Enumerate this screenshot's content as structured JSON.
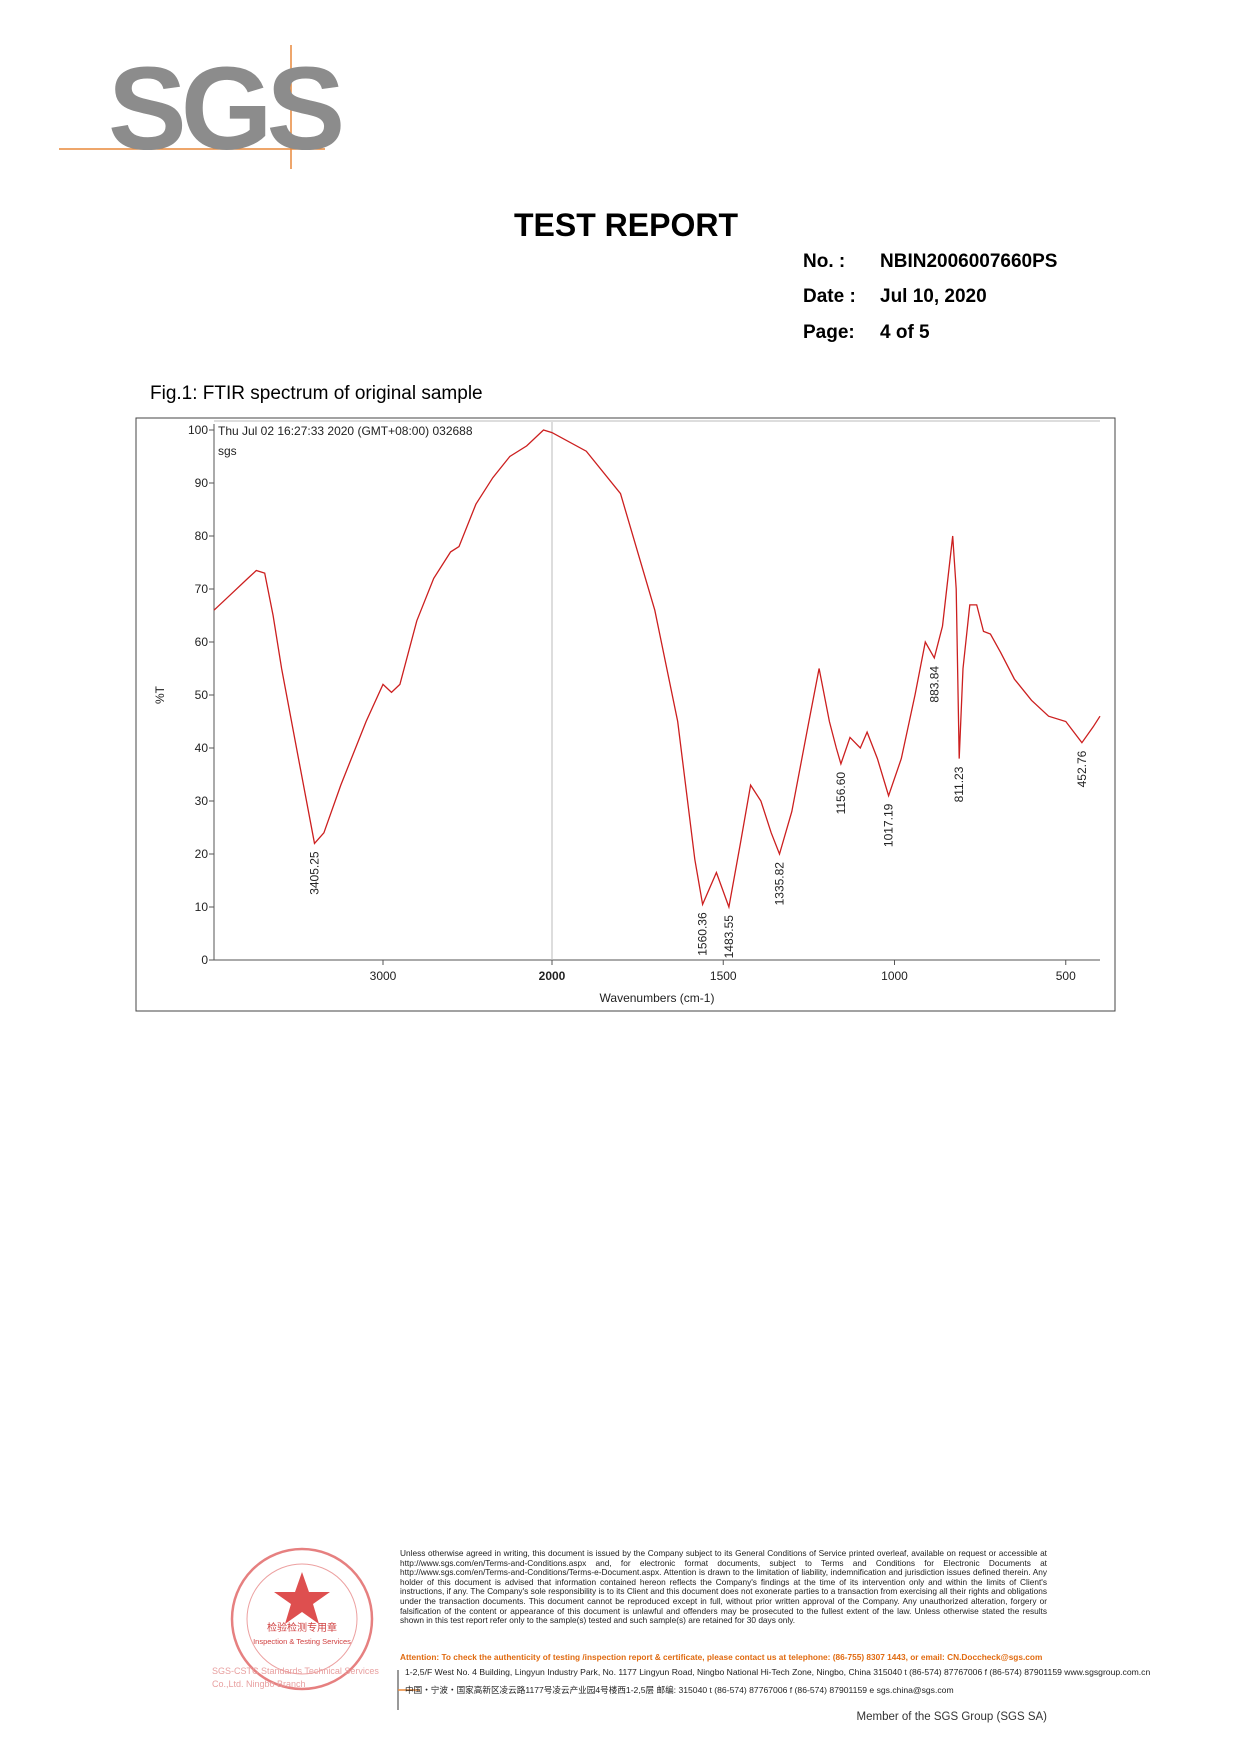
{
  "header": {
    "logo": "SGS",
    "title": "TEST REPORT",
    "fields": [
      {
        "label": "No.  :",
        "value": "NBIN2006007660PS"
      },
      {
        "label": "Date :",
        "value": "Jul 10, 2020"
      },
      {
        "label": "Page:",
        "value": "4 of  5"
      }
    ]
  },
  "figure": {
    "caption": "Fig.1: FTIR spectrum of original sample"
  },
  "chart_data": {
    "type": "line",
    "annotations": [
      "Thu Jul 02 16:27:33 2020 (GMT+08:00) 032688",
      "sgs"
    ],
    "x_label": "Wavenumbers (cm-1)",
    "y_label": "%T",
    "x": [
      4000,
      3900,
      3800,
      3750,
      3700,
      3650,
      3600,
      3500,
      3405.25,
      3350,
      3250,
      3100,
      3000,
      2950,
      2900,
      2800,
      2700,
      2600,
      2550,
      2450,
      2350,
      2250,
      2150,
      2050,
      2000,
      1900,
      1800,
      1700,
      1633,
      1583,
      1560.36,
      1520,
      1483.55,
      1450,
      1420,
      1390,
      1360,
      1335.82,
      1300,
      1250,
      1220,
      1190,
      1170,
      1156.6,
      1130,
      1100,
      1080,
      1050,
      1017.19,
      980,
      940,
      910,
      883.84,
      860,
      830,
      820,
      811.23,
      800,
      780,
      760,
      740,
      720,
      690,
      650,
      600,
      550,
      500,
      452.76,
      420,
      400
    ],
    "series": [
      {
        "color": "#cc1f1f",
        "values": [
          66,
          69,
          72,
          73.5,
          73,
          65,
          55,
          38,
          22,
          24,
          33,
          45,
          52,
          50.5,
          52,
          64,
          72,
          77,
          78,
          86,
          91,
          95,
          97,
          100,
          99.5,
          96,
          88,
          66,
          45,
          19,
          10.5,
          16.5,
          10,
          22,
          33,
          30,
          24,
          20,
          28,
          45,
          55,
          45,
          40,
          37,
          42,
          40,
          43,
          38,
          31,
          38,
          50,
          60,
          57,
          63,
          80,
          70,
          38,
          55,
          67,
          67,
          62,
          61.5,
          58,
          53,
          49,
          46,
          45,
          41,
          44,
          46
        ]
      }
    ],
    "xlim": [
      4000,
      400
    ],
    "x_break": 2000,
    "xticks": [
      3000,
      2000,
      1500,
      1000,
      500
    ],
    "ylim": [
      0,
      100
    ],
    "yticks": [
      0,
      10,
      20,
      30,
      40,
      50,
      60,
      70,
      80,
      90,
      100
    ],
    "peaks": [
      3405.25,
      1560.36,
      1483.55,
      1335.82,
      {
        "value": 1156.6,
        "label": "1156.60"
      },
      1017.19,
      883.84,
      811.23,
      452.76
    ]
  },
  "footer": {
    "legal": "Unless otherwise agreed in writing, this document is issued by the Company subject to its General Conditions of Service printed overleaf, available on request or accessible at http://www.sgs.com/en/Terms-and-Conditions.aspx and, for electronic format documents, subject to Terms and Conditions for Electronic Documents at http://www.sgs.com/en/Terms-and-Conditions/Terms-e-Document.aspx. Attention is drawn to the limitation of liability, indemnification and jurisdiction issues defined therein. Any holder of this document is advised that information contained hereon reflects the Company's findings at the time of its intervention only and within the limits of Client's instructions, if any. The Company's sole responsibility is to its Client and this document does not exonerate parties to a transaction from exercising all their rights and obligations under the transaction documents. This document cannot be reproduced except in full, without prior written approval of the Company. Any unauthorized alteration, forgery or falsification of the content or appearance of this document is unlawful and offenders may be prosecuted to the fullest extent of the law. Unless otherwise stated the results shown in this test report refer only to the sample(s) tested and such sample(s) are retained for 30 days only.",
    "attention": "Attention: To check the authenticity of testing /inspection report & certificate, please contact us at telephone: (86-755) 8307 1443, or email: CN.Doccheck@sgs.com",
    "address_en": "1-2,5/F West No. 4 Building, Lingyun Industry Park, No. 1177 Lingyun Road, Ningbo National Hi-Tech Zone, Ningbo, China  315040   t (86-574) 87767006   f (86-574) 87901159   www.sgsgroup.com.cn",
    "address_cn": "中国・宁波・国家高新区凌云路1177号凌云产业园4号楼西1-2,5层      邮编: 315040   t (86-574) 87767006   f (86-574) 87901159   e sgs.china@sgs.com",
    "member": "Member of the SGS Group (SGS SA)",
    "stamp_cn": "检验检测专用章",
    "stamp_en": "Inspection & Testing Services",
    "company": "SGS-CSTC Standards Technical Services Co.,Ltd. Ningbo Branch"
  }
}
